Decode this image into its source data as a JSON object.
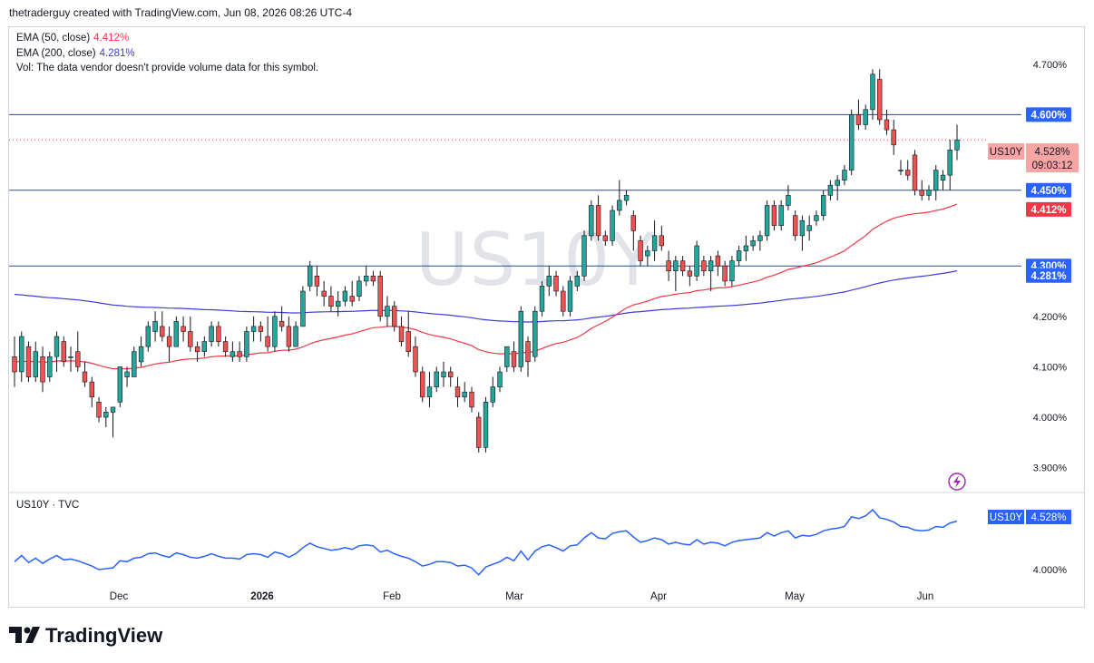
{
  "header": {
    "attribution": "thetraderguy created with TradingView.com, Jun 08, 2026 08:26 UTC-4"
  },
  "legend": {
    "ema50_label": "EMA (50, close)",
    "ema50_value": "4.412%",
    "ema200_label": "EMA (200, close)",
    "ema200_value": "4.281%",
    "vol_note": "Vol: The data vendor doesn't provide volume data for this symbol."
  },
  "watermark": "US10Y",
  "sub_pane": {
    "label": "US10Y · TVC"
  },
  "branding": {
    "logo_text": "TradingView"
  },
  "colors": {
    "up": "#26a69a",
    "down": "#ef5350",
    "ema50": "#f23645",
    "ema200": "#3d3dd8",
    "hline": "#2a4a8a",
    "line": "#2962ff",
    "badge_blue": "#2962ff",
    "badge_red": "#f23645"
  },
  "chart_data": [
    {
      "type": "candlestick",
      "symbol": "US10Y",
      "ylim": [
        3.88,
        4.75
      ],
      "y_ticks": [
        "4.700%",
        "4.600%",
        "4.200%",
        "4.100%",
        "4.000%",
        "3.900%"
      ],
      "x_tick_labels": [
        "Dec",
        "2026",
        "Feb",
        "Mar",
        "Apr",
        "May",
        "Jun"
      ],
      "horizontal_lines": [
        {
          "value": 4.6,
          "label": "4.600%"
        },
        {
          "value": 4.45,
          "label": "4.450%"
        },
        {
          "value": 4.3,
          "label": "4.300%"
        }
      ],
      "price_badge": {
        "symbol": "US10Y",
        "value": "4.528%",
        "countdown": "09:03:12"
      },
      "ema_badges": [
        {
          "value": "4.412%"
        },
        {
          "value": "4.281%"
        }
      ],
      "candles": [
        [
          4.12,
          4.16,
          4.06,
          4.09
        ],
        [
          4.09,
          4.17,
          4.07,
          4.16
        ],
        [
          4.14,
          4.15,
          4.07,
          4.08
        ],
        [
          4.08,
          4.15,
          4.07,
          4.13
        ],
        [
          4.12,
          4.14,
          4.05,
          4.07
        ],
        [
          4.08,
          4.13,
          4.07,
          4.12
        ],
        [
          4.12,
          4.17,
          4.09,
          4.16
        ],
        [
          4.15,
          4.16,
          4.1,
          4.11
        ],
        [
          4.12,
          4.14,
          4.09,
          4.12
        ],
        [
          4.13,
          4.17,
          4.09,
          4.1
        ],
        [
          4.09,
          4.11,
          4.06,
          4.07
        ],
        [
          4.07,
          4.08,
          4.02,
          4.04
        ],
        [
          4.03,
          4.04,
          3.99,
          4.0
        ],
        [
          4.0,
          4.02,
          3.98,
          4.01
        ],
        [
          4.01,
          4.02,
          3.96,
          4.02
        ],
        [
          4.03,
          4.1,
          4.02,
          4.1
        ],
        [
          4.08,
          4.1,
          4.06,
          4.09
        ],
        [
          4.08,
          4.14,
          4.08,
          4.13
        ],
        [
          4.11,
          4.16,
          4.1,
          4.14
        ],
        [
          4.14,
          4.19,
          4.13,
          4.18
        ],
        [
          4.17,
          4.21,
          4.15,
          4.19
        ],
        [
          4.18,
          4.21,
          4.15,
          4.16
        ],
        [
          4.16,
          4.18,
          4.11,
          4.14
        ],
        [
          4.14,
          4.2,
          4.14,
          4.19
        ],
        [
          4.18,
          4.2,
          4.15,
          4.17
        ],
        [
          4.17,
          4.2,
          4.13,
          4.14
        ],
        [
          4.14,
          4.15,
          4.11,
          4.13
        ],
        [
          4.13,
          4.16,
          4.12,
          4.15
        ],
        [
          4.15,
          4.19,
          4.14,
          4.18
        ],
        [
          4.18,
          4.19,
          4.14,
          4.15
        ],
        [
          4.15,
          4.16,
          4.12,
          4.13
        ],
        [
          4.12,
          4.15,
          4.11,
          4.13
        ],
        [
          4.13,
          4.15,
          4.11,
          4.12
        ],
        [
          4.12,
          4.18,
          4.11,
          4.17
        ],
        [
          4.17,
          4.2,
          4.15,
          4.18
        ],
        [
          4.18,
          4.19,
          4.15,
          4.17
        ],
        [
          4.16,
          4.2,
          4.13,
          4.14
        ],
        [
          4.14,
          4.21,
          4.13,
          4.2
        ],
        [
          4.19,
          4.22,
          4.17,
          4.18
        ],
        [
          4.18,
          4.2,
          4.13,
          4.14
        ],
        [
          4.14,
          4.19,
          4.14,
          4.18
        ],
        [
          4.18,
          4.26,
          4.18,
          4.25
        ],
        [
          4.26,
          4.31,
          4.25,
          4.3
        ],
        [
          4.28,
          4.3,
          4.24,
          4.26
        ],
        [
          4.25,
          4.27,
          4.22,
          4.24
        ],
        [
          4.24,
          4.26,
          4.21,
          4.22
        ],
        [
          4.22,
          4.25,
          4.2,
          4.23
        ],
        [
          4.23,
          4.26,
          4.22,
          4.25
        ],
        [
          4.24,
          4.27,
          4.22,
          4.23
        ],
        [
          4.24,
          4.28,
          4.23,
          4.27
        ],
        [
          4.27,
          4.3,
          4.26,
          4.28
        ],
        [
          4.28,
          4.29,
          4.26,
          4.27
        ],
        [
          4.28,
          4.29,
          4.19,
          4.2
        ],
        [
          4.2,
          4.24,
          4.18,
          4.22
        ],
        [
          4.22,
          4.23,
          4.17,
          4.18
        ],
        [
          4.18,
          4.2,
          4.14,
          4.15
        ],
        [
          4.17,
          4.21,
          4.12,
          4.13
        ],
        [
          4.14,
          4.16,
          4.08,
          4.09
        ],
        [
          4.09,
          4.1,
          4.03,
          4.04
        ],
        [
          4.04,
          4.09,
          4.02,
          4.06
        ],
        [
          4.06,
          4.1,
          4.05,
          4.09
        ],
        [
          4.08,
          4.11,
          4.06,
          4.09
        ],
        [
          4.09,
          4.1,
          4.06,
          4.08
        ],
        [
          4.06,
          4.08,
          4.02,
          4.04
        ],
        [
          4.04,
          4.07,
          4.03,
          4.05
        ],
        [
          4.05,
          4.06,
          4.01,
          4.02
        ],
        [
          4.0,
          4.01,
          3.93,
          3.94
        ],
        [
          3.94,
          4.04,
          3.93,
          4.03
        ],
        [
          4.03,
          4.08,
          4.02,
          4.06
        ],
        [
          4.06,
          4.1,
          4.05,
          4.09
        ],
        [
          4.1,
          4.14,
          4.09,
          4.14
        ],
        [
          4.13,
          4.15,
          4.09,
          4.1
        ],
        [
          4.1,
          4.22,
          4.09,
          4.21
        ],
        [
          4.15,
          4.16,
          4.08,
          4.11
        ],
        [
          4.12,
          4.22,
          4.11,
          4.21
        ],
        [
          4.21,
          4.27,
          4.2,
          4.26
        ],
        [
          4.26,
          4.3,
          4.24,
          4.28
        ],
        [
          4.28,
          4.29,
          4.24,
          4.25
        ],
        [
          4.25,
          4.26,
          4.2,
          4.21
        ],
        [
          4.21,
          4.28,
          4.2,
          4.27
        ],
        [
          4.26,
          4.29,
          4.25,
          4.28
        ],
        [
          4.28,
          4.37,
          4.27,
          4.36
        ],
        [
          4.36,
          4.43,
          4.35,
          4.42
        ],
        [
          4.42,
          4.44,
          4.35,
          4.36
        ],
        [
          4.36,
          4.37,
          4.34,
          4.35
        ],
        [
          4.35,
          4.42,
          4.34,
          4.41
        ],
        [
          4.41,
          4.47,
          4.4,
          4.43
        ],
        [
          4.43,
          4.45,
          4.42,
          4.44
        ],
        [
          4.4,
          4.41,
          4.33,
          4.37
        ],
        [
          4.35,
          4.36,
          4.3,
          4.31
        ],
        [
          4.32,
          4.34,
          4.3,
          4.33
        ],
        [
          4.33,
          4.39,
          4.31,
          4.36
        ],
        [
          4.36,
          4.38,
          4.33,
          4.34
        ],
        [
          4.31,
          4.33,
          4.27,
          4.29
        ],
        [
          4.29,
          4.32,
          4.25,
          4.31
        ],
        [
          4.31,
          4.32,
          4.28,
          4.29
        ],
        [
          4.29,
          4.3,
          4.26,
          4.28
        ],
        [
          4.28,
          4.35,
          4.27,
          4.34
        ],
        [
          4.31,
          4.32,
          4.28,
          4.29
        ],
        [
          4.29,
          4.32,
          4.25,
          4.31
        ],
        [
          4.32,
          4.33,
          4.28,
          4.3
        ],
        [
          4.3,
          4.31,
          4.26,
          4.27
        ],
        [
          4.27,
          4.32,
          4.26,
          4.31
        ],
        [
          4.31,
          4.34,
          4.3,
          4.33
        ],
        [
          4.33,
          4.36,
          4.31,
          4.34
        ],
        [
          4.34,
          4.36,
          4.33,
          4.35
        ],
        [
          4.35,
          4.37,
          4.33,
          4.36
        ],
        [
          4.36,
          4.43,
          4.35,
          4.42
        ],
        [
          4.42,
          4.43,
          4.37,
          4.38
        ],
        [
          4.38,
          4.43,
          4.37,
          4.42
        ],
        [
          4.42,
          4.46,
          4.41,
          4.44
        ],
        [
          4.4,
          4.41,
          4.35,
          4.36
        ],
        [
          4.36,
          4.4,
          4.33,
          4.39
        ],
        [
          4.37,
          4.4,
          4.35,
          4.38
        ],
        [
          4.39,
          4.41,
          4.38,
          4.4
        ],
        [
          4.4,
          4.45,
          4.39,
          4.44
        ],
        [
          4.44,
          4.47,
          4.43,
          4.46
        ],
        [
          4.46,
          4.48,
          4.43,
          4.47
        ],
        [
          4.47,
          4.5,
          4.46,
          4.49
        ],
        [
          4.49,
          4.61,
          4.48,
          4.6
        ],
        [
          4.6,
          4.63,
          4.57,
          4.58
        ],
        [
          4.58,
          4.62,
          4.57,
          4.61
        ],
        [
          4.61,
          4.69,
          4.59,
          4.68
        ],
        [
          4.67,
          4.69,
          4.58,
          4.59
        ],
        [
          4.59,
          4.61,
          4.56,
          4.57
        ],
        [
          4.57,
          4.59,
          4.52,
          4.54
        ],
        [
          4.49,
          4.51,
          4.48,
          4.49
        ],
        [
          4.49,
          4.51,
          4.47,
          4.48
        ],
        [
          4.52,
          4.53,
          4.44,
          4.45
        ],
        [
          4.45,
          4.47,
          4.43,
          4.44
        ],
        [
          4.44,
          4.46,
          4.43,
          4.45
        ],
        [
          4.45,
          4.5,
          4.43,
          4.49
        ],
        [
          4.47,
          4.49,
          4.45,
          4.48
        ],
        [
          4.48,
          4.55,
          4.45,
          4.53
        ],
        [
          4.53,
          4.58,
          4.51,
          4.55
        ]
      ]
    },
    {
      "type": "line",
      "symbol": "US10Y · TVC",
      "y_ticks": [
        "4.000%"
      ],
      "last_value": "4.528%"
    }
  ]
}
